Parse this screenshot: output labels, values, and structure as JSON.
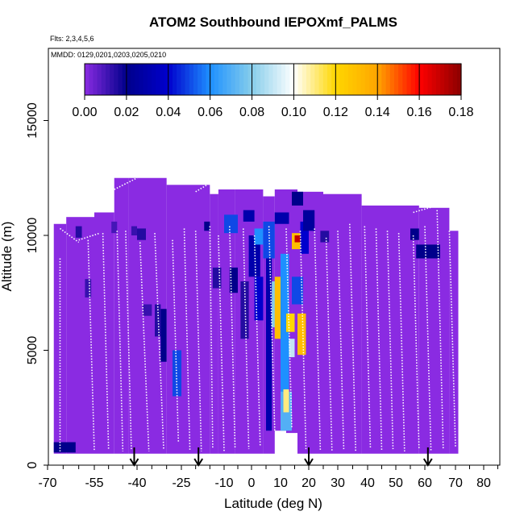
{
  "chart_data": {
    "type": "heatmap",
    "title": "ATOM2 Southbound IEPOXmf_PALMS",
    "subtitle_flights": "Flts: 2,3,4,5,6",
    "subtitle_dates": "MMDD: 0129,0201,0203,0205,0210",
    "xlabel": "Latitude (deg N)",
    "ylabel": "Altitude (m)",
    "xlim": [
      -70,
      85
    ],
    "ylim": [
      0,
      17500
    ],
    "x_ticks": [
      -70,
      -55,
      -40,
      -25,
      -10,
      0,
      10,
      20,
      30,
      40,
      50,
      60,
      70,
      80
    ],
    "x_tick_labels": [
      "-70",
      "-55",
      "-40",
      "-25",
      "-10",
      "0",
      "10",
      "20",
      "30",
      "40",
      "50",
      "60",
      "70",
      "80"
    ],
    "y_ticks": [
      0,
      5000,
      10000,
      15000
    ],
    "y_tick_labels": [
      "0",
      "5000",
      "10000",
      "15000"
    ],
    "colorbar": {
      "ticks": [
        0.0,
        0.02,
        0.04,
        0.06,
        0.08,
        0.1,
        0.12,
        0.14,
        0.16,
        0.18
      ],
      "tick_labels": [
        "0.00",
        "0.02",
        "0.04",
        "0.06",
        "0.08",
        "0.10",
        "0.12",
        "0.14",
        "0.16",
        "0.18"
      ],
      "colors": [
        "#8a2be2",
        "#00008b",
        "#0000cd",
        "#1e90ff",
        "#87ceeb",
        "#ffffff",
        "#ffd700",
        "#ffa500",
        "#ff0000",
        "#8b0000"
      ]
    },
    "background_value": 0.0,
    "arrows_latitude": [
      -41,
      -19,
      20,
      61
    ],
    "cells": [
      {
        "lat0": -68,
        "lat1": -61,
        "alt0": 550,
        "alt1": 1000,
        "value": 0.02
      },
      {
        "lat0": -61,
        "lat1": -59,
        "alt0": 9900,
        "alt1": 10400,
        "value": 0.015
      },
      {
        "lat0": -58,
        "lat1": -56,
        "alt0": 7300,
        "alt1": 8100,
        "value": 0.012
      },
      {
        "lat0": -49,
        "lat1": -47,
        "alt0": 10100,
        "alt1": 10600,
        "value": 0.01
      },
      {
        "lat0": -42,
        "lat1": -40,
        "alt0": 10000,
        "alt1": 10400,
        "value": 0.012
      },
      {
        "lat0": -40,
        "lat1": -37,
        "alt0": 9800,
        "alt1": 10300,
        "value": 0.015
      },
      {
        "lat0": -34,
        "lat1": -32,
        "alt0": 5600,
        "alt1": 7000,
        "value": 0.015
      },
      {
        "lat0": -38,
        "lat1": -35,
        "alt0": 6500,
        "alt1": 7000,
        "value": 0.012
      },
      {
        "lat0": -32,
        "lat1": -30,
        "alt0": 4500,
        "alt1": 6800,
        "value": 0.02
      },
      {
        "lat0": -28,
        "lat1": -25,
        "alt0": 3000,
        "alt1": 5000,
        "value": 0.05
      },
      {
        "lat0": -17,
        "lat1": -15,
        "alt0": 10200,
        "alt1": 10600,
        "value": 0.02
      },
      {
        "lat0": -14,
        "lat1": -11,
        "alt0": 7700,
        "alt1": 8600,
        "value": 0.015
      },
      {
        "lat0": -8,
        "lat1": -5,
        "alt0": 7500,
        "alt1": 8600,
        "value": 0.02
      },
      {
        "lat0": -4,
        "lat1": -1,
        "alt0": 5500,
        "alt1": 8000,
        "value": 0.015
      },
      {
        "lat0": -10,
        "lat1": -5,
        "alt0": 10100,
        "alt1": 10900,
        "value": 0.05
      },
      {
        "lat0": -3,
        "lat1": 1,
        "alt0": 10600,
        "alt1": 11100,
        "value": 0.03
      },
      {
        "lat0": -1,
        "lat1": 3,
        "alt0": 8200,
        "alt1": 10000,
        "value": 0.03
      },
      {
        "lat0": 1,
        "lat1": 4,
        "alt0": 9600,
        "alt1": 10300,
        "value": 0.06
      },
      {
        "lat0": 1,
        "lat1": 4,
        "alt0": 6300,
        "alt1": 8200,
        "value": 0.04
      },
      {
        "lat0": 4,
        "lat1": 8,
        "alt0": 9000,
        "alt1": 10600,
        "value": 0.05
      },
      {
        "lat0": 5,
        "lat1": 7,
        "alt0": 1500,
        "alt1": 9000,
        "value": 0.03
      },
      {
        "lat0": 7,
        "lat1": 11,
        "alt0": 6000,
        "alt1": 8000,
        "value": 0.08
      },
      {
        "lat0": 8,
        "lat1": 10,
        "alt0": 5500,
        "alt1": 8200,
        "value": 0.13
      },
      {
        "lat0": 10,
        "lat1": 13,
        "alt0": 2200,
        "alt1": 9200,
        "value": 0.06
      },
      {
        "lat0": 10,
        "lat1": 14,
        "alt0": 1500,
        "alt1": 3200,
        "value": 0.07
      },
      {
        "lat0": 11,
        "lat1": 13,
        "alt0": 2300,
        "alt1": 3300,
        "value": 0.11
      },
      {
        "lat0": 12,
        "lat1": 15,
        "alt0": 5800,
        "alt1": 6600,
        "value": 0.12
      },
      {
        "lat0": 13,
        "lat1": 15,
        "alt0": 4700,
        "alt1": 5500,
        "value": 0.09
      },
      {
        "lat0": 14,
        "lat1": 17,
        "alt0": 9400,
        "alt1": 10100,
        "value": 0.13
      },
      {
        "lat0": 15,
        "lat1": 17,
        "alt0": 9700,
        "alt1": 10000,
        "value": 0.17
      },
      {
        "lat0": 16,
        "lat1": 19,
        "alt0": 4800,
        "alt1": 6600,
        "value": 0.13
      },
      {
        "lat0": 14,
        "lat1": 18,
        "alt0": 7000,
        "alt1": 8200,
        "value": 0.05
      },
      {
        "lat0": 17,
        "lat1": 20,
        "alt0": 9200,
        "alt1": 10600,
        "value": 0.04
      },
      {
        "lat0": 18,
        "lat1": 22,
        "alt0": 10200,
        "alt1": 11100,
        "value": 0.025
      },
      {
        "lat0": 8,
        "lat1": 13,
        "alt0": 10500,
        "alt1": 11000,
        "value": 0.03
      },
      {
        "lat0": 14,
        "lat1": 18,
        "alt0": 11300,
        "alt1": 11900,
        "value": 0.02
      },
      {
        "lat0": 24,
        "lat1": 27,
        "alt0": 9700,
        "alt1": 10200,
        "value": 0.015
      },
      {
        "lat0": 55,
        "lat1": 58,
        "alt0": 9800,
        "alt1": 10300,
        "value": 0.02
      },
      {
        "lat0": 57,
        "lat1": 65,
        "alt0": 9000,
        "alt1": 9600,
        "value": 0.02
      }
    ]
  }
}
